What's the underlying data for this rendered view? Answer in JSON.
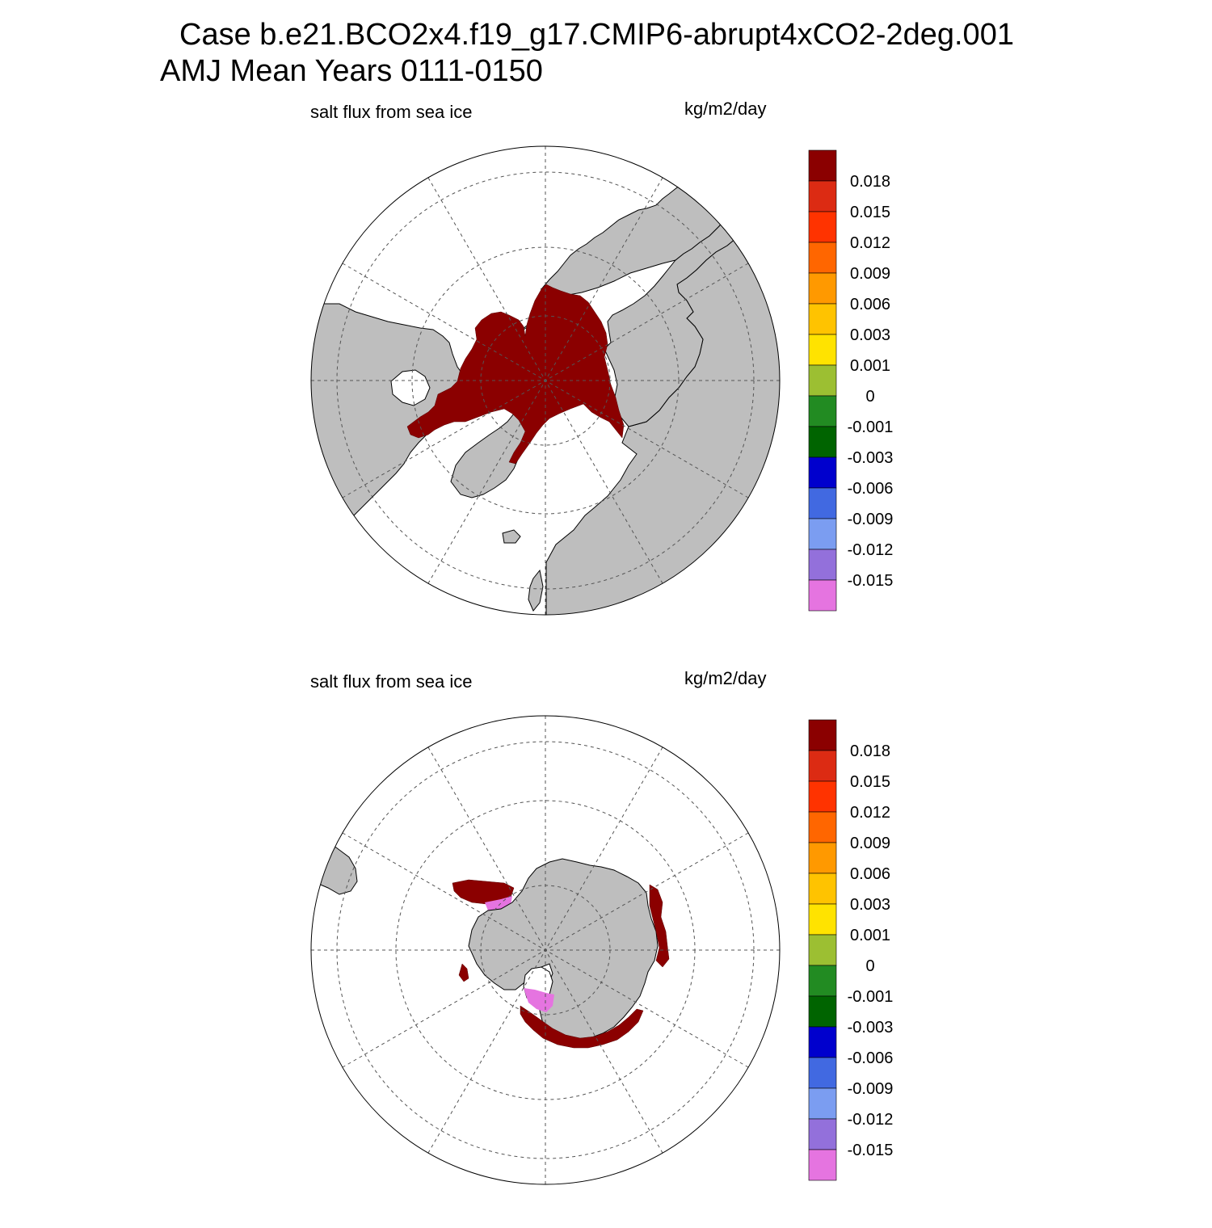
{
  "title": {
    "line1": "Case b.e21.BCO2x4.f19_g17.CMIP6-abrupt4xCO2-2deg.001",
    "line2": "AMJ Mean   Years 0111-0150"
  },
  "colors": {
    "land": "#bebebe",
    "ocean": "#ffffff",
    "grid": "#555555",
    "coast": "#000000"
  },
  "colorbar": {
    "levels": [
      "0.018",
      "0.015",
      "0.012",
      "0.009",
      "0.006",
      "0.003",
      "0.001",
      "0",
      "-0.001",
      "-0.003",
      "-0.006",
      "-0.009",
      "-0.012",
      "-0.015"
    ],
    "colors": [
      "#8b0000",
      "#dc2b13",
      "#ff3300",
      "#ff6600",
      "#ff9900",
      "#ffc300",
      "#ffe300",
      "#9cbf32",
      "#228b22",
      "#006400",
      "#0000cd",
      "#4169e1",
      "#7b9df1",
      "#9370db",
      "#e574e0"
    ]
  },
  "panels": [
    {
      "id": "north",
      "variable": "salt flux from sea ice",
      "units": "kg/m2/day",
      "hemisphere": "Northern (polar stereographic)"
    },
    {
      "id": "south",
      "variable": "salt flux from sea ice",
      "units": "kg/m2/day",
      "hemisphere": "Southern (polar stereographic)"
    }
  ]
}
